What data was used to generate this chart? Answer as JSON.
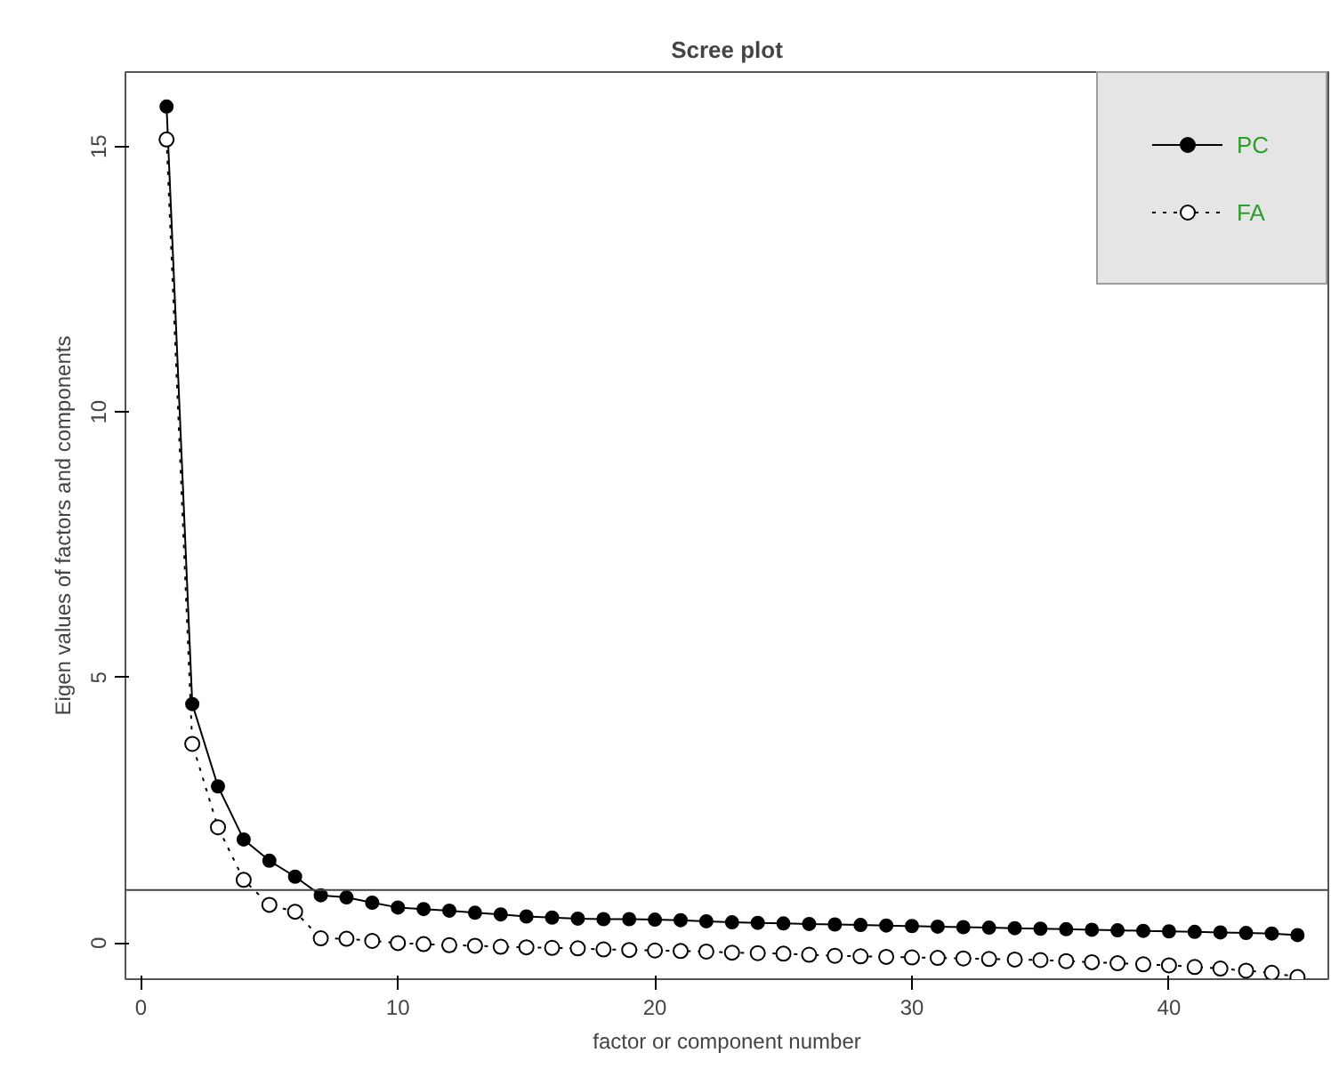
{
  "chart_data": {
    "type": "line",
    "title": "Scree plot",
    "xlabel": "factor or component number",
    "ylabel": "Eigen values of factors and components",
    "x": [
      1,
      2,
      3,
      4,
      5,
      6,
      7,
      8,
      9,
      10,
      11,
      12,
      13,
      14,
      15,
      16,
      17,
      18,
      19,
      20,
      21,
      22,
      23,
      24,
      25,
      26,
      27,
      28,
      29,
      30,
      31,
      32,
      33,
      34,
      35,
      36,
      37,
      38,
      39,
      40,
      41,
      42,
      43,
      44,
      45
    ],
    "series": [
      {
        "name": "PC",
        "color": "#000000",
        "marker": "circle",
        "line_style": "solid",
        "values": [
          15.75,
          4.5,
          2.95,
          1.95,
          1.55,
          1.25,
          0.9,
          0.86,
          0.76,
          0.67,
          0.64,
          0.61,
          0.57,
          0.54,
          0.5,
          0.48,
          0.46,
          0.45,
          0.45,
          0.44,
          0.43,
          0.41,
          0.39,
          0.38,
          0.37,
          0.36,
          0.35,
          0.34,
          0.33,
          0.32,
          0.31,
          0.3,
          0.29,
          0.28,
          0.27,
          0.26,
          0.25,
          0.24,
          0.23,
          0.22,
          0.21,
          0.2,
          0.19,
          0.18,
          0.15
        ]
      },
      {
        "name": "FA",
        "color": "#000000",
        "marker": "circle_open",
        "line_style": "dotted",
        "values": [
          15.13,
          3.75,
          2.18,
          1.19,
          0.72,
          0.59,
          0.09,
          0.08,
          0.04,
          0.0,
          -0.02,
          -0.04,
          -0.05,
          -0.07,
          -0.08,
          -0.09,
          -0.1,
          -0.12,
          -0.13,
          -0.14,
          -0.15,
          -0.16,
          -0.18,
          -0.19,
          -0.2,
          -0.22,
          -0.24,
          -0.25,
          -0.26,
          -0.27,
          -0.28,
          -0.29,
          -0.3,
          -0.31,
          -0.32,
          -0.34,
          -0.36,
          -0.38,
          -0.4,
          -0.42,
          -0.45,
          -0.48,
          -0.52,
          -0.56,
          -0.64
        ]
      }
    ],
    "xlim": [
      -0.6,
      46.2
    ],
    "ylim": [
      -0.68,
      16.4
    ],
    "xticks": [
      0,
      10,
      20,
      30,
      40
    ],
    "yticks": [
      0,
      5,
      10,
      15
    ],
    "ref_lines": [
      {
        "axis": "y",
        "value": 1,
        "label": null
      }
    ],
    "legend": "top right",
    "grid": false
  }
}
